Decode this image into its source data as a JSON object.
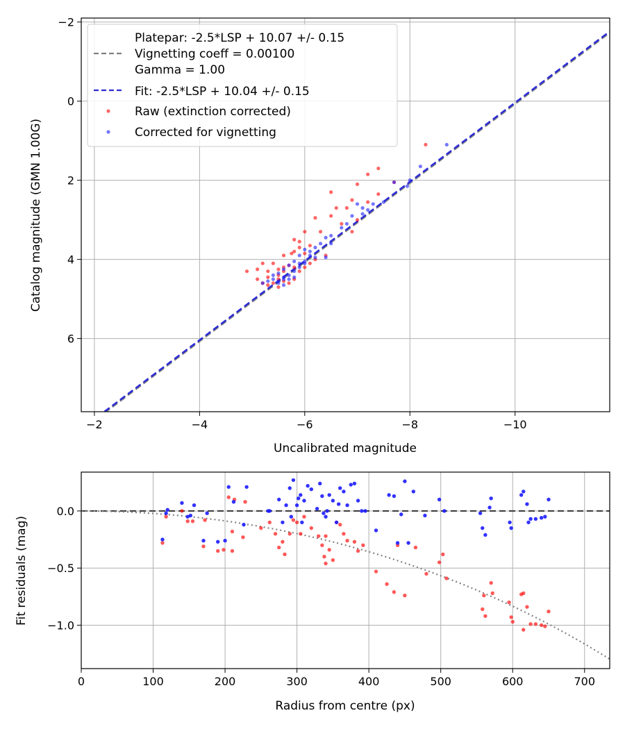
{
  "chart_data": [
    {
      "type": "scatter",
      "name": "photometry-fit",
      "xlabel": "Uncalibrated magnitude",
      "ylabel": "Catalog magnitude (GMN 1.00G)",
      "xlim": [
        -1.75,
        -11.8
      ],
      "ylim": [
        -2.1,
        7.85
      ],
      "xticks": [
        -2,
        -4,
        -6,
        -8,
        -10
      ],
      "xtick_labels": [
        "−2",
        "−4",
        "−6",
        "−8",
        "−10"
      ],
      "yticks": [
        -2,
        0,
        2,
        4,
        6
      ],
      "ytick_labels": [
        "−2",
        "0",
        "2",
        "4",
        "6"
      ],
      "grid": true,
      "legend_position": "top-left",
      "legend": {
        "platepar_lines": [
          "Platepar: -2.5*LSP + 10.07 +/- 0.15",
          "Vignetting coeff = 0.00100",
          "Gamma = 1.00"
        ],
        "fit": "Fit: -2.5*LSP + 10.04 +/- 0.15",
        "raw": "Raw (extinction corrected)",
        "corrected": "Corrected for vignetting"
      },
      "platepar_line": {
        "slope": 1,
        "intercept": 10.07,
        "color": "#808080",
        "style": "dashed"
      },
      "fit_line": {
        "slope": 1,
        "intercept": 10.04,
        "color": "#2b2bd6",
        "style": "dashed"
      },
      "series": [
        {
          "name": "Raw (extinction corrected)",
          "color": "#ff0000",
          "points": [
            [
              -8.3,
              1.1
            ],
            [
              -7.4,
              1.7
            ],
            [
              -7.7,
              2.05
            ],
            [
              -7.2,
              1.85
            ],
            [
              -7.0,
              2.1
            ],
            [
              -6.5,
              2.3
            ],
            [
              -6.9,
              2.5
            ],
            [
              -7.2,
              2.55
            ],
            [
              -7.4,
              2.35
            ],
            [
              -6.8,
              2.7
            ],
            [
              -6.6,
              2.7
            ],
            [
              -6.5,
              2.9
            ],
            [
              -6.2,
              2.95
            ],
            [
              -6.0,
              3.3
            ],
            [
              -6.3,
              3.3
            ],
            [
              -6.7,
              3.1
            ],
            [
              -6.9,
              3.3
            ],
            [
              -7.0,
              3.0
            ],
            [
              -5.8,
              3.5
            ],
            [
              -5.9,
              3.55
            ],
            [
              -5.9,
              3.7
            ],
            [
              -6.1,
              3.65
            ],
            [
              -6.0,
              3.85
            ],
            [
              -6.4,
              3.9
            ],
            [
              -6.2,
              4.0
            ],
            [
              -5.8,
              3.8
            ],
            [
              -5.75,
              3.85
            ],
            [
              -5.6,
              3.9
            ],
            [
              -5.4,
              4.1
            ],
            [
              -5.2,
              4.1
            ],
            [
              -5.1,
              4.25
            ],
            [
              -4.9,
              4.3
            ],
            [
              -5.3,
              4.3
            ],
            [
              -5.5,
              4.25
            ],
            [
              -5.6,
              4.2
            ],
            [
              -5.7,
              4.15
            ],
            [
              -5.8,
              4.2
            ],
            [
              -5.5,
              4.4
            ],
            [
              -5.3,
              4.45
            ],
            [
              -5.1,
              4.5
            ],
            [
              -5.2,
              4.6
            ],
            [
              -5.3,
              4.65
            ],
            [
              -5.5,
              4.5
            ],
            [
              -5.6,
              4.55
            ],
            [
              -5.7,
              4.6
            ],
            [
              -5.5,
              4.7
            ],
            [
              -5.4,
              4.6
            ],
            [
              -5.8,
              4.5
            ],
            [
              -6.1,
              4.1
            ],
            [
              -6.0,
              4.2
            ],
            [
              -5.9,
              4.3
            ],
            [
              -5.6,
              4.3
            ]
          ]
        },
        {
          "name": "Corrected for vignetting",
          "color": "#1c1cff",
          "points": [
            [
              -8.7,
              1.1
            ],
            [
              -8.2,
              1.65
            ],
            [
              -8.0,
              2.0
            ],
            [
              -7.95,
              2.15
            ],
            [
              -7.7,
              2.05
            ],
            [
              -7.5,
              2.55
            ],
            [
              -7.3,
              2.6
            ],
            [
              -7.2,
              2.75
            ],
            [
              -7.1,
              2.7
            ],
            [
              -7.1,
              2.85
            ],
            [
              -7.0,
              2.6
            ],
            [
              -6.9,
              2.9
            ],
            [
              -6.8,
              3.1
            ],
            [
              -6.7,
              3.2
            ],
            [
              -6.5,
              3.4
            ],
            [
              -6.4,
              3.45
            ],
            [
              -6.5,
              3.6
            ],
            [
              -6.3,
              3.6
            ],
            [
              -6.2,
              3.7
            ],
            [
              -6.1,
              3.8
            ],
            [
              -6.0,
              3.75
            ],
            [
              -5.9,
              3.9
            ],
            [
              -6.2,
              3.95
            ],
            [
              -6.4,
              3.95
            ],
            [
              -6.0,
              4.05
            ],
            [
              -5.8,
              4.05
            ],
            [
              -5.7,
              4.15
            ],
            [
              -5.6,
              4.25
            ],
            [
              -5.5,
              4.35
            ],
            [
              -5.4,
              4.4
            ],
            [
              -5.4,
              4.5
            ],
            [
              -5.5,
              4.6
            ],
            [
              -5.6,
              4.45
            ],
            [
              -5.7,
              4.4
            ],
            [
              -5.8,
              4.3
            ],
            [
              -5.9,
              4.2
            ],
            [
              -6.0,
              4.1
            ],
            [
              -5.3,
              4.55
            ],
            [
              -5.2,
              4.6
            ],
            [
              -5.6,
              4.65
            ],
            [
              -5.7,
              4.5
            ],
            [
              -5.8,
              4.45
            ],
            [
              -5.9,
              4.1
            ],
            [
              -6.1,
              3.9
            ],
            [
              -5.5,
              4.55
            ],
            [
              -5.6,
              4.5
            ]
          ]
        }
      ]
    },
    {
      "type": "scatter",
      "name": "vignetting-residuals",
      "xlabel": "Radius from centre (px)",
      "ylabel": "Fit residuals (mag)",
      "xlim": [
        0,
        735
      ],
      "ylim": [
        -1.38,
        0.34
      ],
      "xticks": [
        0,
        100,
        200,
        300,
        400,
        500,
        600,
        700
      ],
      "xtick_labels": [
        "0",
        "100",
        "200",
        "300",
        "400",
        "500",
        "600",
        "700"
      ],
      "yticks": [
        0,
        -0.5,
        -1
      ],
      "ytick_labels": [
        "0.0",
        "−0.5",
        "−1.0"
      ],
      "grid": true,
      "zero_line": {
        "y": 0,
        "color": "#404040",
        "style": "dashed"
      },
      "vignetting_curve": {
        "coeff": 0.001,
        "color": "#808080",
        "style": "dotted"
      },
      "series": [
        {
          "name": "Raw (extinction corrected)",
          "color": "#ff0000",
          "points": [
            [
              113,
              -0.28
            ],
            [
              118,
              -0.05
            ],
            [
              140,
              0.0
            ],
            [
              148,
              -0.09
            ],
            [
              155,
              -0.09
            ],
            [
              170,
              -0.31
            ],
            [
              172,
              -0.08
            ],
            [
              190,
              -0.35
            ],
            [
              198,
              -0.34
            ],
            [
              205,
              0.12
            ],
            [
              210,
              -0.35
            ],
            [
              210,
              -0.18
            ],
            [
              213,
              0.1
            ],
            [
              225,
              -0.23
            ],
            [
              228,
              0.08
            ],
            [
              250,
              -0.15
            ],
            [
              262,
              -0.1
            ],
            [
              270,
              -0.2
            ],
            [
              275,
              -0.32
            ],
            [
              280,
              -0.27
            ],
            [
              283,
              -0.38
            ],
            [
              290,
              -0.2
            ],
            [
              295,
              -0.08
            ],
            [
              300,
              -0.1
            ],
            [
              305,
              -0.2
            ],
            [
              310,
              -0.05
            ],
            [
              320,
              -0.15
            ],
            [
              330,
              -0.22
            ],
            [
              335,
              -0.3
            ],
            [
              338,
              -0.4
            ],
            [
              340,
              -0.46
            ],
            [
              345,
              -0.34
            ],
            [
              350,
              -0.43
            ],
            [
              360,
              -0.12
            ],
            [
              370,
              -0.26
            ],
            [
              380,
              -0.27
            ],
            [
              385,
              -0.35
            ],
            [
              392,
              -0.3
            ],
            [
              410,
              -0.53
            ],
            [
              425,
              -0.64
            ],
            [
              435,
              -0.71
            ],
            [
              440,
              -0.3
            ],
            [
              450,
              -0.74
            ],
            [
              465,
              -0.32
            ],
            [
              480,
              -0.55
            ],
            [
              498,
              -0.45
            ],
            [
              503,
              -0.38
            ],
            [
              508,
              -0.59
            ],
            [
              558,
              -0.86
            ],
            [
              560,
              -0.74
            ],
            [
              562,
              -0.92
            ],
            [
              570,
              -0.63
            ],
            [
              572,
              -0.72
            ],
            [
              595,
              -0.8
            ],
            [
              598,
              -0.93
            ],
            [
              600,
              -0.97
            ],
            [
              612,
              -0.73
            ],
            [
              615,
              -0.72
            ],
            [
              615,
              -1.04
            ],
            [
              620,
              -0.84
            ],
            [
              625,
              -0.99
            ],
            [
              632,
              -0.99
            ],
            [
              640,
              -1.0
            ],
            [
              645,
              -1.01
            ],
            [
              650,
              -0.88
            ],
            [
              340,
              -0.22
            ],
            [
              355,
              -0.1
            ],
            [
              365,
              -0.2
            ]
          ]
        },
        {
          "name": "Corrected for vignetting",
          "color": "#1c1cff",
          "points": [
            [
              113,
              -0.25
            ],
            [
              118,
              -0.02
            ],
            [
              120,
              0.01
            ],
            [
              140,
              0.07
            ],
            [
              148,
              -0.05
            ],
            [
              152,
              -0.04
            ],
            [
              157,
              0.05
            ],
            [
              170,
              -0.26
            ],
            [
              175,
              -0.02
            ],
            [
              190,
              -0.27
            ],
            [
              200,
              -0.26
            ],
            [
              205,
              0.21
            ],
            [
              212,
              0.08
            ],
            [
              226,
              -0.12
            ],
            [
              230,
              0.21
            ],
            [
              260,
              0.0
            ],
            [
              262,
              0.0
            ],
            [
              275,
              0.1
            ],
            [
              280,
              -0.1
            ],
            [
              285,
              0.05
            ],
            [
              290,
              0.2
            ],
            [
              292,
              -0.05
            ],
            [
              295,
              0.27
            ],
            [
              300,
              0.05
            ],
            [
              302,
              0.11
            ],
            [
              305,
              0.14
            ],
            [
              307,
              -0.1
            ],
            [
              310,
              0.09
            ],
            [
              315,
              0.22
            ],
            [
              320,
              0.19
            ],
            [
              328,
              0.02
            ],
            [
              332,
              0.24
            ],
            [
              335,
              0.13
            ],
            [
              337,
              -0.02
            ],
            [
              340,
              -0.05
            ],
            [
              342,
              0.0
            ],
            [
              345,
              0.14
            ],
            [
              350,
              0.09
            ],
            [
              355,
              -0.1
            ],
            [
              358,
              0.06
            ],
            [
              360,
              0.2
            ],
            [
              365,
              0.17
            ],
            [
              370,
              0.05
            ],
            [
              375,
              0.23
            ],
            [
              380,
              0.24
            ],
            [
              385,
              0.09
            ],
            [
              390,
              0.0
            ],
            [
              395,
              0.0
            ],
            [
              410,
              -0.17
            ],
            [
              428,
              0.14
            ],
            [
              435,
              0.13
            ],
            [
              440,
              -0.28
            ],
            [
              445,
              -0.03
            ],
            [
              450,
              0.26
            ],
            [
              455,
              -0.28
            ],
            [
              462,
              0.17
            ],
            [
              478,
              -0.04
            ],
            [
              498,
              0.1
            ],
            [
              505,
              0.0
            ],
            [
              555,
              -0.02
            ],
            [
              558,
              -0.15
            ],
            [
              562,
              -0.21
            ],
            [
              568,
              0.03
            ],
            [
              570,
              0.11
            ],
            [
              596,
              -0.1
            ],
            [
              598,
              -0.15
            ],
            [
              612,
              0.14
            ],
            [
              615,
              0.17
            ],
            [
              620,
              0.06
            ],
            [
              622,
              -0.1
            ],
            [
              625,
              -0.07
            ],
            [
              632,
              -0.07
            ],
            [
              640,
              -0.06
            ],
            [
              645,
              -0.05
            ],
            [
              650,
              0.1
            ]
          ]
        }
      ]
    }
  ]
}
